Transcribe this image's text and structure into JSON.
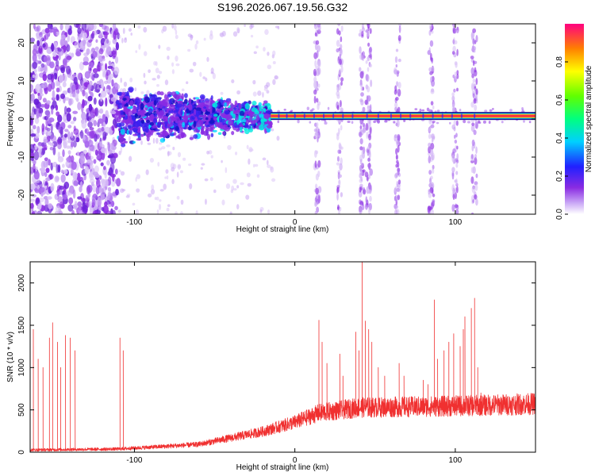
{
  "figure_title": "S196.2026.067.19.56.G32",
  "chart_data": [
    {
      "type": "heatmap",
      "xlabel": "Height of straight line (km)",
      "ylabel": "Frequency (Hz)",
      "xlim": [
        -165,
        150
      ],
      "ylim": [
        -25,
        25
      ],
      "xticks": [
        -100,
        0,
        100
      ],
      "yticks": [
        -20,
        -10,
        0,
        10,
        20
      ],
      "colorbar": {
        "label": "Normalized spectral amplitude",
        "range": [
          0,
          1
        ],
        "ticks": [
          0.0,
          0.2,
          0.4,
          0.6,
          0.8
        ]
      },
      "features": {
        "line_center_hz": 0.8,
        "strong_line_start_km": -15,
        "dense_region_start_km": -110,
        "vertical_bands_km": [
          14,
          28,
          42,
          46,
          64,
          85,
          100,
          112
        ]
      }
    },
    {
      "type": "line",
      "xlabel": "Height of straight line (km)",
      "ylabel": "SNR (10 * v/v)",
      "xlim": [
        -165,
        150
      ],
      "ylim": [
        0,
        2250
      ],
      "xticks": [
        -100,
        0,
        100
      ],
      "yticks": [
        0,
        500,
        1000,
        1500,
        2000
      ],
      "series": [
        {
          "color": "#f03030",
          "baseline_x": [
            -165,
            -110,
            -60,
            -20,
            0,
            15,
            40,
            80,
            110,
            150
          ],
          "baseline_y": [
            20,
            30,
            80,
            220,
            320,
            420,
            480,
            490,
            500,
            520
          ],
          "spikes": [
            {
              "x": -163,
              "y": 1450
            },
            {
              "x": -160,
              "y": 1100
            },
            {
              "x": -157,
              "y": 1000
            },
            {
              "x": -153,
              "y": 1350
            },
            {
              "x": -151,
              "y": 1530
            },
            {
              "x": -148,
              "y": 1300
            },
            {
              "x": -146,
              "y": 1000
            },
            {
              "x": -143,
              "y": 1380
            },
            {
              "x": -140,
              "y": 1350
            },
            {
              "x": -137,
              "y": 1200
            },
            {
              "x": -109,
              "y": 1350
            },
            {
              "x": -107,
              "y": 1200
            },
            {
              "x": 15,
              "y": 1560
            },
            {
              "x": 17,
              "y": 1300
            },
            {
              "x": 20,
              "y": 1050
            },
            {
              "x": 28,
              "y": 1160
            },
            {
              "x": 30,
              "y": 900
            },
            {
              "x": 38,
              "y": 1420
            },
            {
              "x": 40,
              "y": 1200
            },
            {
              "x": 42,
              "y": 2250
            },
            {
              "x": 44,
              "y": 1550
            },
            {
              "x": 46,
              "y": 1450
            },
            {
              "x": 48,
              "y": 1300
            },
            {
              "x": 52,
              "y": 1000
            },
            {
              "x": 56,
              "y": 900
            },
            {
              "x": 65,
              "y": 1050
            },
            {
              "x": 68,
              "y": 900
            },
            {
              "x": 80,
              "y": 850
            },
            {
              "x": 83,
              "y": 800
            },
            {
              "x": 87,
              "y": 1800
            },
            {
              "x": 89,
              "y": 1100
            },
            {
              "x": 93,
              "y": 1200
            },
            {
              "x": 96,
              "y": 1300
            },
            {
              "x": 99,
              "y": 1400
            },
            {
              "x": 103,
              "y": 1250
            },
            {
              "x": 105,
              "y": 1450
            },
            {
              "x": 106,
              "y": 1600
            },
            {
              "x": 110,
              "y": 1700
            },
            {
              "x": 112,
              "y": 1820
            },
            {
              "x": 114,
              "y": 1000
            },
            {
              "x": 116,
              "y": 700
            }
          ]
        }
      ]
    }
  ]
}
